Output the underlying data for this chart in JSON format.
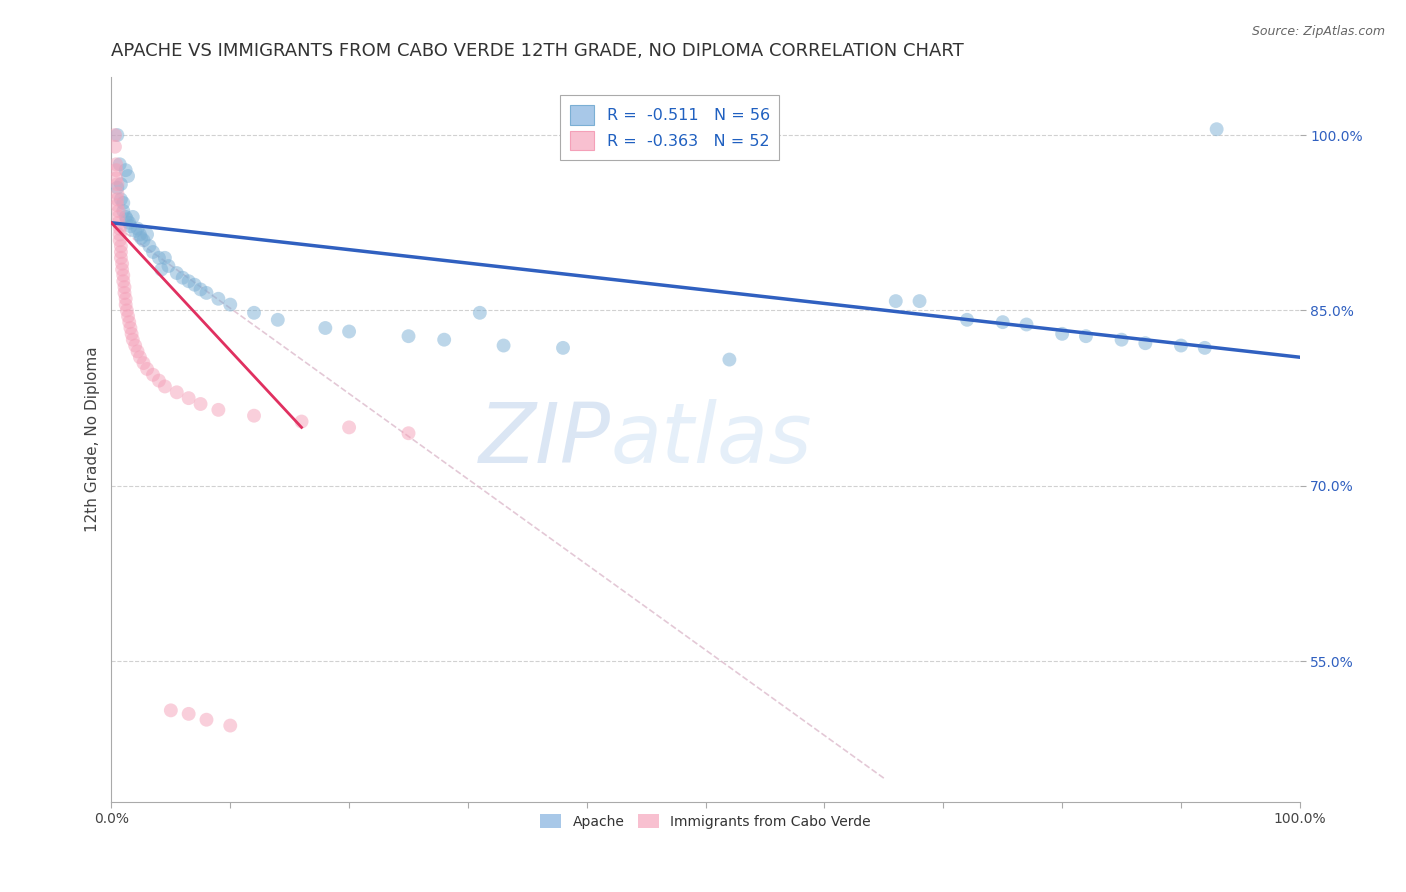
{
  "title": "APACHE VS IMMIGRANTS FROM CABO VERDE 12TH GRADE, NO DIPLOMA CORRELATION CHART",
  "source": "Source: ZipAtlas.com",
  "ylabel": "12th Grade, No Diploma",
  "legend_label_apache": "Apache",
  "legend_label_cabo": "Immigrants from Cabo Verde",
  "apache_color": "#7bafd4",
  "cabo_color": "#f4a0b8",
  "apache_line_color": "#3060c0",
  "cabo_line_color": "#e03060",
  "diagonal_line_color": "#ddbbcc",
  "watermark_zip": "ZIP",
  "watermark_atlas": "atlas",
  "ytick_labels": [
    "100.0%",
    "85.0%",
    "70.0%",
    "55.0%"
  ],
  "ytick_positions": [
    1.0,
    0.85,
    0.7,
    0.55
  ],
  "legend_r1": "R =  -0.511   N = 56",
  "legend_r2": "R =  -0.363   N = 52",
  "xlim": [
    0.0,
    1.0
  ],
  "ylim": [
    0.43,
    1.05
  ],
  "background_color": "#ffffff",
  "grid_color": "#cccccc",
  "title_fontsize": 13,
  "axis_label_fontsize": 11,
  "tick_fontsize": 10,
  "marker_size": 100,
  "marker_alpha": 0.5,
  "apache_points": [
    [
      0.005,
      1.0
    ],
    [
      0.007,
      0.975
    ],
    [
      0.012,
      0.97
    ],
    [
      0.014,
      0.965
    ],
    [
      0.005,
      0.955
    ],
    [
      0.008,
      0.958
    ],
    [
      0.008,
      0.945
    ],
    [
      0.01,
      0.942
    ],
    [
      0.01,
      0.935
    ],
    [
      0.012,
      0.93
    ],
    [
      0.013,
      0.928
    ],
    [
      0.015,
      0.925
    ],
    [
      0.016,
      0.922
    ],
    [
      0.018,
      0.93
    ],
    [
      0.02,
      0.918
    ],
    [
      0.022,
      0.92
    ],
    [
      0.024,
      0.915
    ],
    [
      0.025,
      0.912
    ],
    [
      0.027,
      0.91
    ],
    [
      0.03,
      0.915
    ],
    [
      0.032,
      0.905
    ],
    [
      0.035,
      0.9
    ],
    [
      0.04,
      0.895
    ],
    [
      0.042,
      0.885
    ],
    [
      0.045,
      0.895
    ],
    [
      0.048,
      0.888
    ],
    [
      0.055,
      0.882
    ],
    [
      0.06,
      0.878
    ],
    [
      0.065,
      0.875
    ],
    [
      0.07,
      0.872
    ],
    [
      0.075,
      0.868
    ],
    [
      0.08,
      0.865
    ],
    [
      0.09,
      0.86
    ],
    [
      0.1,
      0.855
    ],
    [
      0.12,
      0.848
    ],
    [
      0.14,
      0.842
    ],
    [
      0.18,
      0.835
    ],
    [
      0.2,
      0.832
    ],
    [
      0.25,
      0.828
    ],
    [
      0.28,
      0.825
    ],
    [
      0.31,
      0.848
    ],
    [
      0.33,
      0.82
    ],
    [
      0.38,
      0.818
    ],
    [
      0.52,
      0.808
    ],
    [
      0.66,
      0.858
    ],
    [
      0.68,
      0.858
    ],
    [
      0.72,
      0.842
    ],
    [
      0.75,
      0.84
    ],
    [
      0.77,
      0.838
    ],
    [
      0.8,
      0.83
    ],
    [
      0.82,
      0.828
    ],
    [
      0.85,
      0.825
    ],
    [
      0.87,
      0.822
    ],
    [
      0.9,
      0.82
    ],
    [
      0.92,
      0.818
    ],
    [
      0.93,
      1.005
    ]
  ],
  "cabo_points": [
    [
      0.003,
      1.0
    ],
    [
      0.003,
      0.99
    ],
    [
      0.004,
      0.975
    ],
    [
      0.004,
      0.97
    ],
    [
      0.004,
      0.963
    ],
    [
      0.005,
      0.958
    ],
    [
      0.005,
      0.95
    ],
    [
      0.005,
      0.945
    ],
    [
      0.005,
      0.94
    ],
    [
      0.006,
      0.935
    ],
    [
      0.006,
      0.93
    ],
    [
      0.006,
      0.925
    ],
    [
      0.007,
      0.92
    ],
    [
      0.007,
      0.915
    ],
    [
      0.007,
      0.91
    ],
    [
      0.008,
      0.905
    ],
    [
      0.008,
      0.9
    ],
    [
      0.008,
      0.895
    ],
    [
      0.009,
      0.89
    ],
    [
      0.009,
      0.885
    ],
    [
      0.01,
      0.88
    ],
    [
      0.01,
      0.875
    ],
    [
      0.011,
      0.87
    ],
    [
      0.011,
      0.865
    ],
    [
      0.012,
      0.86
    ],
    [
      0.012,
      0.855
    ],
    [
      0.013,
      0.85
    ],
    [
      0.014,
      0.845
    ],
    [
      0.015,
      0.84
    ],
    [
      0.016,
      0.835
    ],
    [
      0.017,
      0.83
    ],
    [
      0.018,
      0.825
    ],
    [
      0.02,
      0.82
    ],
    [
      0.022,
      0.815
    ],
    [
      0.024,
      0.81
    ],
    [
      0.027,
      0.805
    ],
    [
      0.03,
      0.8
    ],
    [
      0.035,
      0.795
    ],
    [
      0.04,
      0.79
    ],
    [
      0.045,
      0.785
    ],
    [
      0.055,
      0.78
    ],
    [
      0.065,
      0.775
    ],
    [
      0.075,
      0.77
    ],
    [
      0.09,
      0.765
    ],
    [
      0.12,
      0.76
    ],
    [
      0.16,
      0.755
    ],
    [
      0.2,
      0.75
    ],
    [
      0.25,
      0.745
    ],
    [
      0.05,
      0.508
    ],
    [
      0.065,
      0.505
    ],
    [
      0.08,
      0.5
    ],
    [
      0.1,
      0.495
    ]
  ],
  "apache_trendline": [
    [
      0.0,
      0.925
    ],
    [
      1.0,
      0.81
    ]
  ],
  "cabo_trendline": [
    [
      0.0,
      0.925
    ],
    [
      0.16,
      0.75
    ]
  ],
  "diagonal_line": [
    [
      0.0,
      0.925
    ],
    [
      0.65,
      0.45
    ]
  ]
}
